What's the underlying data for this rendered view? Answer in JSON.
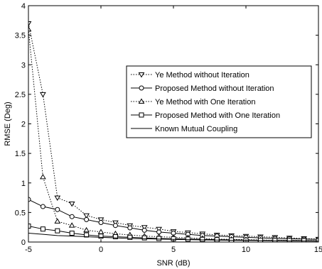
{
  "chart_data": {
    "type": "line",
    "xlabel": "SNR (dB)",
    "ylabel": "RMSE (Deg)",
    "xlim": [
      -5,
      15
    ],
    "ylim": [
      0,
      4
    ],
    "xticks": [
      -5,
      0,
      5,
      10,
      15
    ],
    "yticks": [
      0,
      0.5,
      1,
      1.5,
      2,
      2.5,
      3,
      3.5,
      4
    ],
    "xtick_labels": [
      "-5",
      "0",
      "5",
      "10",
      "15"
    ],
    "ytick_labels": [
      "0",
      "0.5",
      "1",
      "1.5",
      "2",
      "2.5",
      "3",
      "3.5",
      "4"
    ],
    "grid": false,
    "legend_position": "center-right",
    "series": [
      {
        "name": "Ye Method without Iteration",
        "line_style": "dotted",
        "marker": "triangle-down",
        "x": [
          -5,
          -4,
          -3,
          -2,
          -1,
          0,
          1,
          2,
          3,
          4,
          5,
          6,
          7,
          8,
          9,
          10,
          11,
          12,
          13,
          14,
          15
        ],
        "y": [
          3.7,
          2.5,
          0.75,
          0.65,
          0.45,
          0.38,
          0.33,
          0.28,
          0.25,
          0.22,
          0.18,
          0.16,
          0.14,
          0.12,
          0.11,
          0.1,
          0.09,
          0.08,
          0.07,
          0.06,
          0.05
        ]
      },
      {
        "name": "Proposed Method without Iteration",
        "line_style": "solid",
        "marker": "circle",
        "x": [
          -5,
          -4,
          -3,
          -2,
          -1,
          0,
          1,
          2,
          3,
          4,
          5,
          6,
          7,
          8,
          9,
          10,
          11,
          12,
          13,
          14,
          15
        ],
        "y": [
          0.72,
          0.6,
          0.55,
          0.43,
          0.38,
          0.33,
          0.28,
          0.24,
          0.2,
          0.17,
          0.15,
          0.13,
          0.11,
          0.1,
          0.09,
          0.08,
          0.07,
          0.06,
          0.055,
          0.05,
          0.045
        ]
      },
      {
        "name": "Ye Method with One Iteration",
        "line_style": "dotted",
        "marker": "triangle-up",
        "x": [
          -5,
          -4,
          -3,
          -2,
          -1,
          0,
          1,
          2,
          3,
          4,
          5,
          6,
          7,
          8,
          9,
          10,
          11,
          12,
          13,
          14,
          15
        ],
        "y": [
          3.6,
          1.1,
          0.35,
          0.28,
          0.2,
          0.17,
          0.14,
          0.12,
          0.1,
          0.09,
          0.08,
          0.07,
          0.06,
          0.05,
          0.045,
          0.04,
          0.035,
          0.03,
          0.028,
          0.025,
          0.022
        ]
      },
      {
        "name": "Proposed Method with One Iteration",
        "line_style": "solid",
        "marker": "square",
        "x": [
          -5,
          -4,
          -3,
          -2,
          -1,
          0,
          1,
          2,
          3,
          4,
          5,
          6,
          7,
          8,
          9,
          10,
          11,
          12,
          13,
          14,
          15
        ],
        "y": [
          0.27,
          0.22,
          0.19,
          0.15,
          0.12,
          0.1,
          0.09,
          0.08,
          0.07,
          0.06,
          0.055,
          0.05,
          0.045,
          0.04,
          0.036,
          0.033,
          0.03,
          0.027,
          0.025,
          0.022,
          0.02
        ]
      },
      {
        "name": "Known Mutual Coupling",
        "line_style": "solid",
        "marker": "none",
        "x": [
          -5,
          -4,
          -3,
          -2,
          -1,
          0,
          1,
          2,
          3,
          4,
          5,
          6,
          7,
          8,
          9,
          10,
          11,
          12,
          13,
          14,
          15
        ],
        "y": [
          0.15,
          0.13,
          0.11,
          0.1,
          0.09,
          0.08,
          0.07,
          0.06,
          0.055,
          0.05,
          0.045,
          0.04,
          0.036,
          0.033,
          0.03,
          0.027,
          0.025,
          0.022,
          0.02,
          0.018,
          0.016
        ]
      }
    ]
  }
}
